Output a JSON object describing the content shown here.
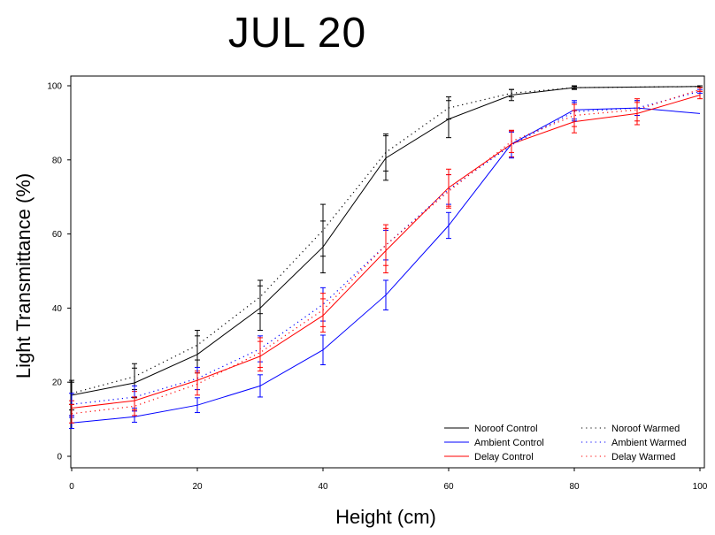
{
  "chart_data": {
    "type": "line",
    "title": "JUL 20",
    "xlabel": "Height (cm)",
    "ylabel": "Light Transmittance (%)",
    "xlim": [
      0,
      100
    ],
    "ylim": [
      0,
      100
    ],
    "xticks": [
      "0",
      "20",
      "40",
      "60",
      "80",
      "100"
    ],
    "yticks": [
      "0",
      "20",
      "40",
      "60",
      "80",
      "100"
    ],
    "grid": false,
    "legend_position": "bottom-right",
    "series": [
      {
        "name": "Noroof Control",
        "color": "#000000",
        "style": "solid",
        "x": [
          0,
          10,
          20,
          30,
          40,
          50,
          60,
          70,
          80,
          100
        ],
        "y": [
          16.5,
          19.8,
          27.5,
          40.0,
          56.5,
          80.5,
          91.0,
          97.5,
          99.5,
          99.8
        ],
        "err": [
          4.0,
          4.0,
          5.0,
          6.0,
          7.0,
          6.0,
          5.0,
          1.5,
          0.5,
          0.2
        ]
      },
      {
        "name": "Ambient Control",
        "color": "#0000ff",
        "style": "solid",
        "x": [
          0,
          10,
          20,
          30,
          40,
          50,
          60,
          70,
          80,
          90,
          100
        ],
        "y": [
          9.0,
          10.7,
          13.8,
          19.0,
          28.7,
          43.5,
          62.3,
          84.3,
          93.5,
          94.0,
          92.5
        ],
        "err": [
          1.5,
          1.5,
          2.0,
          3.0,
          4.0,
          4.0,
          3.5,
          3.5,
          2.5,
          2.0,
          0.0
        ]
      },
      {
        "name": "Delay Control",
        "color": "#ff0000",
        "style": "solid",
        "x": [
          0,
          10,
          20,
          30,
          40,
          50,
          60,
          70,
          80,
          90,
          100
        ],
        "y": [
          13.0,
          15.0,
          20.5,
          27.0,
          38.0,
          55.5,
          72.5,
          84.3,
          90.3,
          92.5,
          97.5
        ],
        "err": [
          2.0,
          2.5,
          2.5,
          4.0,
          4.5,
          6.0,
          5.0,
          3.5,
          3.0,
          3.0,
          1.0
        ]
      },
      {
        "name": "Noroof Warmed",
        "color": "#000000",
        "style": "dotted",
        "x": [
          0,
          10,
          20,
          30,
          40,
          50,
          60,
          70,
          80,
          100
        ],
        "y": [
          17.0,
          21.5,
          30.0,
          43.0,
          61.0,
          82.0,
          94.0,
          98.0,
          99.5,
          99.8
        ],
        "err": [
          3.0,
          3.5,
          4.0,
          4.5,
          7.0,
          5.0,
          3.0,
          1.0,
          0.3,
          0.2
        ]
      },
      {
        "name": "Ambient Warmed",
        "color": "#0000ff",
        "style": "dotted",
        "x": [
          0,
          10,
          20,
          30,
          40,
          50,
          60,
          70,
          80,
          90,
          100
        ],
        "y": [
          14.0,
          16.0,
          21.0,
          29.0,
          41.0,
          57.0,
          72.0,
          84.0,
          93.0,
          94.0,
          98.5
        ],
        "err": [
          3.0,
          3.0,
          3.0,
          3.5,
          4.5,
          4.0,
          4.0,
          3.5,
          2.5,
          2.0,
          0.5
        ]
      },
      {
        "name": "Delay Warmed",
        "color": "#ff0000",
        "style": "dotted",
        "x": [
          0,
          10,
          20,
          30,
          40,
          50,
          60,
          70,
          80,
          90,
          100
        ],
        "y": [
          11.5,
          13.5,
          19.5,
          28.0,
          39.5,
          57.0,
          71.5,
          85.0,
          92.0,
          93.5,
          99.0
        ],
        "err": [
          2.5,
          2.5,
          3.0,
          4.0,
          4.5,
          5.5,
          4.5,
          3.0,
          3.0,
          3.0,
          0.5
        ]
      }
    ]
  }
}
